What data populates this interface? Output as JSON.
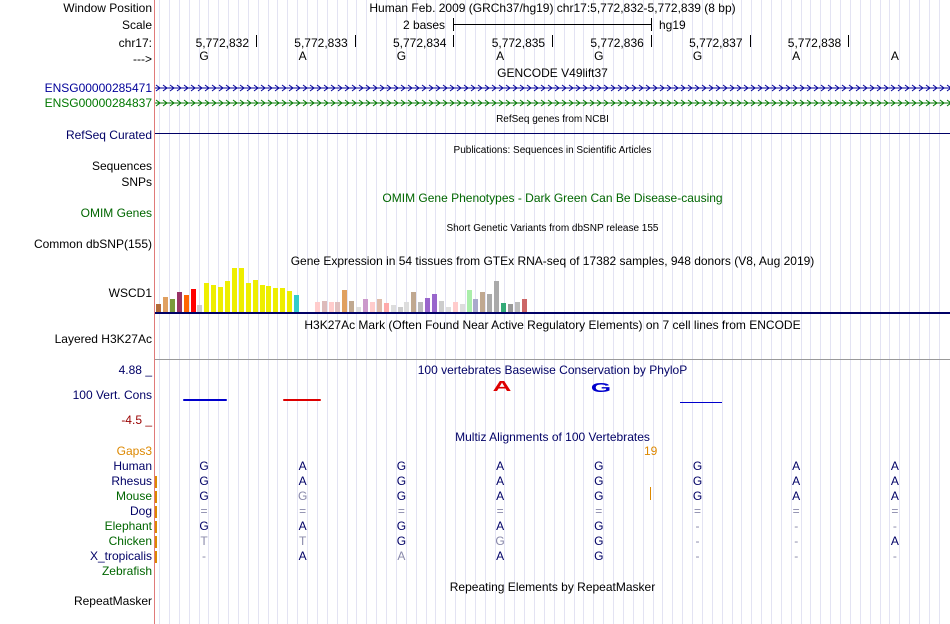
{
  "header": {
    "window_position_label": "Window Position",
    "window_position_value": "Human Feb. 2009 (GRCh37/hg19)   chr17:5,772,832-5,772,839 (8 bp)",
    "scale_label": "Scale",
    "scale_value": "2 bases",
    "scale_assembly": "hg19",
    "chrom_label": "chr17:",
    "arrow_label": "--->"
  },
  "coordinates": [
    "5,772,832",
    "5,772,833",
    "5,772,834",
    "5,772,835",
    "5,772,836",
    "5,772,837",
    "5,772,838"
  ],
  "sequence": [
    "G",
    "A",
    "G",
    "A",
    "G",
    "G",
    "A",
    "A"
  ],
  "tracks": {
    "gencode_title": "GENCODE V49lift37",
    "ensg1": "ENSG00000285471",
    "ensg2": "ENSG00000284837",
    "refseq_label": "RefSeq Curated",
    "refseq_title": "RefSeq genes from NCBI",
    "publications_title": "Publications: Sequences in Scientific Articles",
    "sequences_label": "Sequences",
    "snps_label": "SNPs",
    "omim_title": "OMIM Gene Phenotypes - Dark Green Can Be Disease-causing",
    "omim_label": "OMIM Genes",
    "dbsnp_title": "Short Genetic Variants from dbSNP release 155",
    "dbsnp_label": "Common dbSNP(155)",
    "gtex_title": "Gene Expression in 54 tissues from GTEx RNA-seq of 17382 samples, 948 donors (V8, Aug 2019)",
    "gtex_label": "WSCD1",
    "h3k27ac_title": "H3K27Ac Mark (Often Found Near Active Regulatory Elements) on 7 cell lines from ENCODE",
    "h3k27ac_label": "Layered H3K27Ac",
    "cons_max": "4.88 _",
    "cons_title": "100 vertebrates Basewise Conservation by PhyloP",
    "cons_label": "100 Vert. Cons",
    "cons_min": "-4.5 _",
    "multiz_title": "Multiz Alignments of 100 Vertebrates",
    "gaps_label": "Gaps3",
    "gaps_value": "19",
    "repeat_title": "Repeating Elements by RepeatMasker",
    "repeat_label": "RepeatMasker"
  },
  "gtex_bars": [
    {
      "v": 0.18,
      "c": "#b36b3a"
    },
    {
      "v": 0.35,
      "c": "#e0a060"
    },
    {
      "v": 0.3,
      "c": "#7a9a3a"
    },
    {
      "v": 0.45,
      "c": "#993366"
    },
    {
      "v": 0.38,
      "c": "#ff6600"
    },
    {
      "v": 0.52,
      "c": "#ff0000"
    },
    {
      "v": 0.15,
      "c": "#cccccc"
    },
    {
      "v": 0.65,
      "c": "#eeee00"
    },
    {
      "v": 0.62,
      "c": "#eeee00"
    },
    {
      "v": 0.58,
      "c": "#eeee00"
    },
    {
      "v": 0.7,
      "c": "#eeee00"
    },
    {
      "v": 1.0,
      "c": "#eeee00"
    },
    {
      "v": 1.0,
      "c": "#eeee00"
    },
    {
      "v": 0.65,
      "c": "#eeee00"
    },
    {
      "v": 0.72,
      "c": "#eeee00"
    },
    {
      "v": 0.62,
      "c": "#eeee00"
    },
    {
      "v": 0.6,
      "c": "#eeee00"
    },
    {
      "v": 0.55,
      "c": "#eeee00"
    },
    {
      "v": 0.55,
      "c": "#eeee00"
    },
    {
      "v": 0.48,
      "c": "#eeee00"
    },
    {
      "v": 0.38,
      "c": "#33cccc"
    },
    {
      "v": 0.0,
      "c": "#ffffff"
    },
    {
      "v": 0.0,
      "c": "#ffffff"
    },
    {
      "v": 0.22,
      "c": "#ffcccc"
    },
    {
      "v": 0.25,
      "c": "#ddbbbb"
    },
    {
      "v": 0.22,
      "c": "#ffcccc"
    },
    {
      "v": 0.22,
      "c": "#e0c0c0"
    },
    {
      "v": 0.5,
      "c": "#e0a060"
    },
    {
      "v": 0.25,
      "c": "#c0a890"
    },
    {
      "v": 0.12,
      "c": "#dddddd"
    },
    {
      "v": 0.3,
      "c": "#cc99cc"
    },
    {
      "v": 0.22,
      "c": "#ffcccc"
    },
    {
      "v": 0.3,
      "c": "#ddbbaa"
    },
    {
      "v": 0.2,
      "c": "#ffaaaa"
    },
    {
      "v": 0.15,
      "c": "#dddddd"
    },
    {
      "v": 0.12,
      "c": "#cccccc"
    },
    {
      "v": 0.22,
      "c": "#dddddd"
    },
    {
      "v": 0.45,
      "c": "#c0a890"
    },
    {
      "v": 0.22,
      "c": "#bbbbbb"
    },
    {
      "v": 0.32,
      "c": "#9966cc"
    },
    {
      "v": 0.42,
      "c": "#9966cc"
    },
    {
      "v": 0.25,
      "c": "#cccccc"
    },
    {
      "v": 0.12,
      "c": "#dddddd"
    },
    {
      "v": 0.22,
      "c": "#ffcccc"
    },
    {
      "v": 0.18,
      "c": "#dddddd"
    },
    {
      "v": 0.5,
      "c": "#aaeeaa"
    },
    {
      "v": 0.3,
      "c": "#aaaacc"
    },
    {
      "v": 0.45,
      "c": "#c0a890"
    },
    {
      "v": 0.42,
      "c": "#aaaaaa"
    },
    {
      "v": 0.7,
      "c": "#aaaaaa"
    },
    {
      "v": 0.2,
      "c": "#33aa77"
    },
    {
      "v": 0.18,
      "c": "#999999"
    },
    {
      "v": 0.22,
      "c": "#bbbbbb"
    },
    {
      "v": 0.3,
      "c": "#cc6666"
    }
  ],
  "multiz": [
    {
      "name": "Human",
      "color": "#000066",
      "bases": [
        [
          "G",
          "#000066"
        ],
        [
          "A",
          "#000066"
        ],
        [
          "G",
          "#000066"
        ],
        [
          "A",
          "#000066"
        ],
        [
          "G",
          "#000066"
        ],
        [
          "G",
          "#000066"
        ],
        [
          "A",
          "#000066"
        ],
        [
          "A",
          "#000066"
        ]
      ]
    },
    {
      "name": "Rhesus",
      "color": "#000066",
      "bases": [
        [
          "G",
          "#000066"
        ],
        [
          "A",
          "#000066"
        ],
        [
          "G",
          "#000066"
        ],
        [
          "A",
          "#000066"
        ],
        [
          "G",
          "#000066"
        ],
        [
          "G",
          "#000066"
        ],
        [
          "A",
          "#000066"
        ],
        [
          "A",
          "#000066"
        ]
      ]
    },
    {
      "name": "Mouse",
      "color": "#006600",
      "bases": [
        [
          "G",
          "#000066"
        ],
        [
          "G",
          "#8888aa"
        ],
        [
          "G",
          "#000066"
        ],
        [
          "A",
          "#000066"
        ],
        [
          "G",
          "#000066"
        ],
        [
          "G",
          "#000066"
        ],
        [
          "A",
          "#000066"
        ],
        [
          "A",
          "#000066"
        ]
      ]
    },
    {
      "name": "Dog",
      "color": "#000066",
      "bases": [
        [
          "=",
          "#8888aa"
        ],
        [
          "=",
          "#8888aa"
        ],
        [
          "=",
          "#8888aa"
        ],
        [
          "=",
          "#8888aa"
        ],
        [
          "=",
          "#8888aa"
        ],
        [
          "=",
          "#8888aa"
        ],
        [
          "=",
          "#8888aa"
        ],
        [
          "=",
          "#8888aa"
        ]
      ]
    },
    {
      "name": "Elephant",
      "color": "#006600",
      "bases": [
        [
          "G",
          "#000066"
        ],
        [
          "A",
          "#000066"
        ],
        [
          "G",
          "#000066"
        ],
        [
          "A",
          "#000066"
        ],
        [
          "G",
          "#000066"
        ],
        [
          "-",
          "#8888aa"
        ],
        [
          "-",
          "#8888aa"
        ],
        [
          "-",
          "#8888aa"
        ]
      ]
    },
    {
      "name": "Chicken",
      "color": "#006600",
      "bases": [
        [
          "T",
          "#8888aa"
        ],
        [
          "T",
          "#8888aa"
        ],
        [
          "G",
          "#000066"
        ],
        [
          "G",
          "#8888aa"
        ],
        [
          "G",
          "#000066"
        ],
        [
          "-",
          "#8888aa"
        ],
        [
          "-",
          "#8888aa"
        ],
        [
          "A",
          "#000066"
        ]
      ]
    },
    {
      "name": "X_tropicalis",
      "color": "#000066",
      "bases": [
        [
          "-",
          "#8888aa"
        ],
        [
          "A",
          "#000066"
        ],
        [
          "A",
          "#8888aa"
        ],
        [
          "A",
          "#000066"
        ],
        [
          "G",
          "#000066"
        ],
        [
          "-",
          "#8888aa"
        ],
        [
          "-",
          "#8888aa"
        ],
        [
          "-",
          "#8888aa"
        ]
      ]
    },
    {
      "name": "Zebrafish",
      "color": "#006600",
      "bases": []
    }
  ],
  "colors": {
    "navy": "#000066",
    "darkgreen": "#006600",
    "maroon": "#990000",
    "orange": "#dd8800",
    "gencode_blue": "#000099",
    "ensg_green": "#007700",
    "cons_blue": "#0000cc",
    "cons_red": "#dd0000"
  }
}
